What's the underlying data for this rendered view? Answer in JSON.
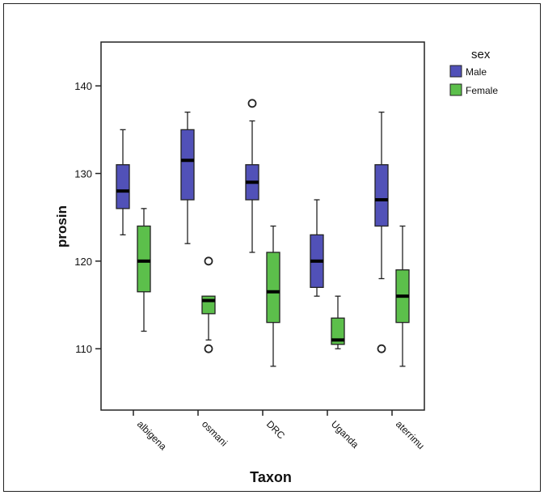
{
  "chart_data": {
    "type": "boxplot",
    "xlabel": "Taxon",
    "ylabel": "prosin",
    "categories": [
      "albigena",
      "osmani",
      "DRC",
      "Uganda",
      "aterrimu"
    ],
    "yticks": [
      110,
      120,
      130,
      140
    ],
    "ylim": [
      103,
      145
    ],
    "grid": false,
    "legend": {
      "title": "sex",
      "position": "right"
    },
    "series": [
      {
        "name": "Male",
        "color": "#5151b8",
        "boxes": [
          {
            "whisker_low": 123,
            "q1": 126,
            "median": 128,
            "q3": 131,
            "whisker_high": 135,
            "outliers": []
          },
          {
            "whisker_low": 122,
            "q1": 127,
            "median": 131.5,
            "q3": 135,
            "whisker_high": 137,
            "outliers": []
          },
          {
            "whisker_low": 121,
            "q1": 127,
            "median": 129,
            "q3": 131,
            "whisker_high": 136,
            "outliers": [
              138
            ]
          },
          {
            "whisker_low": 116,
            "q1": 117,
            "median": 120,
            "q3": 123,
            "whisker_high": 127,
            "outliers": []
          },
          {
            "whisker_low": 118,
            "q1": 124,
            "median": 127,
            "q3": 131,
            "whisker_high": 137,
            "outliers": [
              110
            ]
          }
        ]
      },
      {
        "name": "Female",
        "color": "#5cbf4b",
        "boxes": [
          {
            "whisker_low": 112,
            "q1": 116.5,
            "median": 120,
            "q3": 124,
            "whisker_high": 126,
            "outliers": []
          },
          {
            "whisker_low": 111,
            "q1": 114,
            "median": 115.5,
            "q3": 116,
            "whisker_high": 116,
            "outliers": [
              120,
              110
            ]
          },
          {
            "whisker_low": 108,
            "q1": 113,
            "median": 116.5,
            "q3": 121,
            "whisker_high": 124,
            "outliers": []
          },
          {
            "whisker_low": 110,
            "q1": 110.5,
            "median": 111,
            "q3": 113.5,
            "whisker_high": 116,
            "outliers": []
          },
          {
            "whisker_low": 108,
            "q1": 113,
            "median": 116,
            "q3": 119,
            "whisker_high": 124,
            "outliers": []
          }
        ]
      }
    ]
  }
}
